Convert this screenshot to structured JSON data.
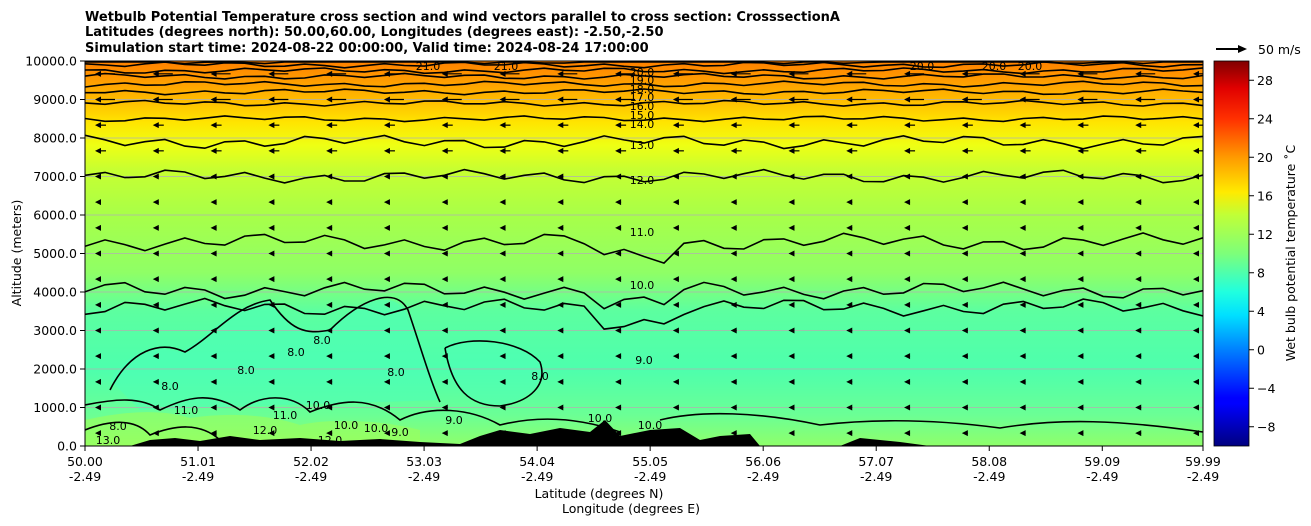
{
  "title": {
    "line1": "Wetbulb Potential Temperature cross section and wind vectors parallel to cross section: CrosssectionA",
    "line2": "Latitudes (degrees north): 50.00,60.00, Longitudes (degrees east): -2.50,-2.50",
    "line3": "Simulation start time: 2024-08-22 00:00:00, Valid time: 2024-08-24 17:00:00"
  },
  "chart_data": {
    "type": "heatmap",
    "xlabel_lat": "Latitude (degrees N)",
    "xlabel_lon": "Longitude (degrees E)",
    "ylabel": "Altitude (meters)",
    "xlim": [
      50.0,
      59.99
    ],
    "ylim": [
      0,
      10000
    ],
    "x_ticks": [
      {
        "lat": "50.00",
        "lon": "-2.49"
      },
      {
        "lat": "51.01",
        "lon": "-2.49"
      },
      {
        "lat": "52.02",
        "lon": "-2.49"
      },
      {
        "lat": "53.03",
        "lon": "-2.49"
      },
      {
        "lat": "54.04",
        "lon": "-2.49"
      },
      {
        "lat": "55.05",
        "lon": "-2.49"
      },
      {
        "lat": "56.06",
        "lon": "-2.49"
      },
      {
        "lat": "57.07",
        "lon": "-2.49"
      },
      {
        "lat": "58.08",
        "lon": "-2.49"
      },
      {
        "lat": "59.09",
        "lon": "-2.49"
      },
      {
        "lat": "59.99",
        "lon": "-2.49"
      }
    ],
    "y_ticks": [
      "0.0",
      "1000.0",
      "2000.0",
      "3000.0",
      "4000.0",
      "5000.0",
      "6000.0",
      "7000.0",
      "8000.0",
      "9000.0",
      "10000.0"
    ],
    "grid": true,
    "colorbar": {
      "label": "Wet bulb potential temperature ˚C",
      "range": [
        -10,
        30
      ],
      "ticks": [
        -8,
        -4,
        0,
        4,
        8,
        12,
        16,
        20,
        24,
        28
      ],
      "tick_labels": [
        "−8",
        "−4",
        "0",
        "4",
        "8",
        "12",
        "16",
        "20",
        "24",
        "28"
      ]
    },
    "wind_key_label": "50 m/s",
    "wind_key_speed": 50,
    "contours": [
      {
        "label": "8.0",
        "levels_m": "isolated pockets 1000-3000 m"
      },
      {
        "label": "9.0",
        "mean_alt_m": 3600
      },
      {
        "label": "10.0",
        "mean_alt_m": 4050
      },
      {
        "label": "11.0",
        "mean_alt_m": 5300
      },
      {
        "label": "12.0",
        "mean_alt_m": 7000
      },
      {
        "label": "13.0",
        "mean_alt_m": 7900
      },
      {
        "label": "14.0",
        "mean_alt_m": 8500
      },
      {
        "label": "15.0",
        "mean_alt_m": 8900
      },
      {
        "label": "16.0",
        "mean_alt_m": 9200
      },
      {
        "label": "17.0",
        "mean_alt_m": 9400
      },
      {
        "label": "18.0",
        "mean_alt_m": 9600
      },
      {
        "label": "19.0",
        "mean_alt_m": 9750
      },
      {
        "label": "20.0",
        "mean_alt_m": 9900
      },
      {
        "label": "21.0",
        "mean_alt_m": 10000
      }
    ],
    "inline_labels": [
      "21.0",
      "21.0",
      "20.0",
      "19.0",
      "18.0",
      "17.0",
      "16.0",
      "15.0",
      "14.0",
      "13.0",
      "12.0",
      "11.0",
      "10.0",
      "9.0",
      "8.0",
      "8.0",
      "8.0",
      "8.0",
      "8.0",
      "8.0",
      "8.0",
      "10.0",
      "10.0",
      "10.0",
      "10.0",
      "10.0",
      "11.0",
      "11.0",
      "12.0",
      "12.0",
      "13.0",
      "20.0",
      "20.0",
      "20.0",
      "9.0",
      "9.0"
    ],
    "colors": {
      "top": "#ff8c00",
      "upper": "#ffd700",
      "mid": "#a6ff4d",
      "low": "#46ffb0",
      "terrain": "#000000",
      "grid": "#b0b0b0"
    }
  }
}
